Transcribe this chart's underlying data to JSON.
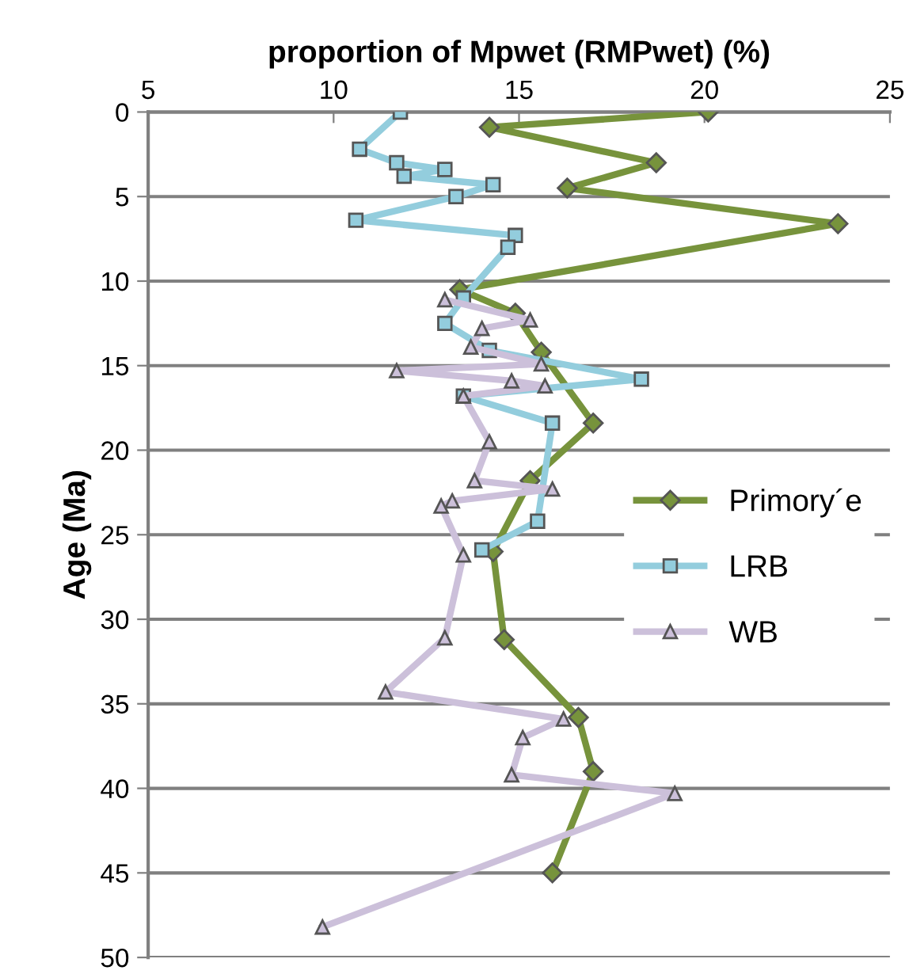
{
  "chart_data": {
    "type": "line",
    "xlabel": "proportion of Mpwet (RMPwet) (%)",
    "ylabel": "Age (Ma)",
    "xlim": [
      5,
      25
    ],
    "xticks": [
      5,
      10,
      15,
      20,
      25
    ],
    "ylim": [
      50,
      0
    ],
    "yticks": [
      0,
      5,
      10,
      15,
      20,
      25,
      30,
      35,
      40,
      45,
      50
    ],
    "grid": "y",
    "legend": "right",
    "series": [
      {
        "name": "Primory´e",
        "color": "#77933c",
        "marker": "diamond",
        "x": [
          20.1,
          14.2,
          18.7,
          16.3,
          23.6,
          13.4,
          14.9,
          15.6,
          17.0,
          15.3,
          14.3,
          14.6,
          16.6,
          17.0,
          15.9
        ],
        "values": [
          0,
          0.9,
          3.0,
          4.5,
          6.6,
          10.5,
          11.9,
          14.2,
          18.4,
          21.8,
          26.0,
          31.2,
          35.8,
          39.0,
          45.0
        ]
      },
      {
        "name": "LRB",
        "color": "#93cddd",
        "marker": "square",
        "x": [
          11.8,
          10.7,
          11.7,
          13.0,
          11.9,
          14.3,
          13.3,
          10.6,
          14.9,
          14.7,
          13.5,
          13.0,
          14.2,
          18.3,
          13.5,
          15.9,
          15.5,
          14.0
        ],
        "values": [
          0,
          2.2,
          3.0,
          3.4,
          3.8,
          4.3,
          5.0,
          6.4,
          7.3,
          8.0,
          11.0,
          12.5,
          14.1,
          15.8,
          16.8,
          18.4,
          24.2,
          25.9
        ]
      },
      {
        "name": "WB",
        "color": "#ccc0da",
        "marker": "triangle",
        "x": [
          13.0,
          15.3,
          14.0,
          13.7,
          15.6,
          11.7,
          14.8,
          15.7,
          13.5,
          14.2,
          13.8,
          15.9,
          13.2,
          12.9,
          13.5,
          13.0,
          11.4,
          16.2,
          15.1,
          14.8,
          19.2,
          9.7
        ],
        "values": [
          11.1,
          12.3,
          12.8,
          13.9,
          14.9,
          15.3,
          15.9,
          16.2,
          16.8,
          19.5,
          21.8,
          22.3,
          23.0,
          23.3,
          26.2,
          31.1,
          34.3,
          35.9,
          37.0,
          39.2,
          40.3,
          48.2
        ]
      }
    ]
  }
}
